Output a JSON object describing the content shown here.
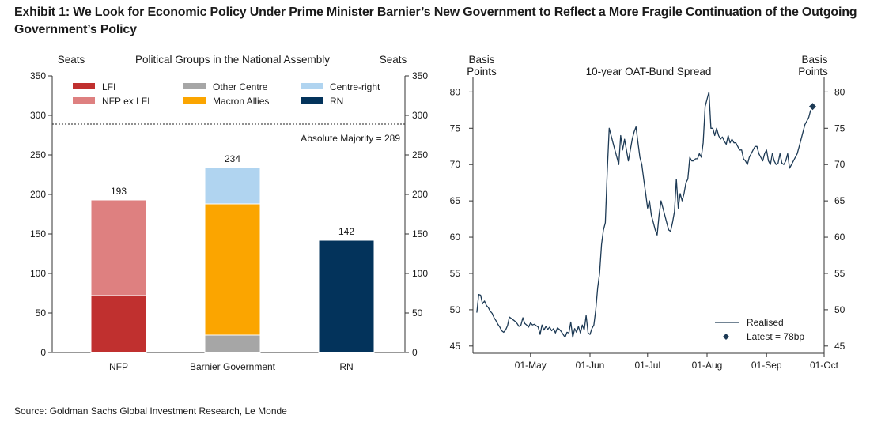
{
  "exhibit": {
    "title": "Exhibit 1: We Look for Economic Policy Under Prime Minister Barnier’s New Government to Reflect a More Fragile Continuation of the Outgoing Government’s Policy",
    "source": "Source: Goldman Sachs Global Investment Research, Le Monde"
  },
  "colors": {
    "LFI": "#c0302f",
    "NFP ex LFI": "#de8080",
    "Other Centre": "#a6a6a6",
    "Macron Allies": "#fba500",
    "Centre-right": "#b0d4f0",
    "RN": "#03335b",
    "line": "#1d3a55"
  },
  "chart_data": [
    {
      "type": "bar",
      "stacked": true,
      "title": "Political Groups in the National Assembly",
      "ylabel": "Seats",
      "ylabel_right": "Seats",
      "ylim": [
        0,
        350
      ],
      "yticks": [
        0,
        50,
        100,
        150,
        200,
        250,
        300,
        350
      ],
      "categories": [
        "NFP",
        "Barnier Government",
        "RN"
      ],
      "series": [
        {
          "name": "LFI",
          "values": [
            72,
            0,
            0
          ]
        },
        {
          "name": "NFP ex LFI",
          "values": [
            121,
            0,
            0
          ]
        },
        {
          "name": "Other Centre",
          "values": [
            0,
            22,
            0
          ]
        },
        {
          "name": "Macron Allies",
          "values": [
            0,
            166,
            0
          ]
        },
        {
          "name": "Centre-right",
          "values": [
            0,
            46,
            0
          ]
        },
        {
          "name": "RN",
          "values": [
            0,
            0,
            142
          ]
        }
      ],
      "totals": [
        "193",
        "234",
        "142"
      ],
      "reference_line": {
        "value": 289,
        "label": "Absolute Majority = 289"
      },
      "legend_order": [
        "LFI",
        "Other Centre",
        "Centre-right",
        "NFP ex LFI",
        "Macron Allies",
        "RN"
      ],
      "legend_position": "top"
    },
    {
      "type": "line",
      "title": "10-year OAT-Bund Spread",
      "ylabel_left": [
        "Basis",
        "Points"
      ],
      "ylabel_right": [
        "Basis",
        "Points"
      ],
      "ylim": [
        44,
        82
      ],
      "yticks": [
        45,
        50,
        55,
        60,
        65,
        70,
        75,
        80
      ],
      "xlim": [
        "2024-04-01",
        "2024-10-01"
      ],
      "xticks": [
        "01-May",
        "01-Jun",
        "01-Jul",
        "01-Aug",
        "01-Sep",
        "01-Oct"
      ],
      "xtick_dates": [
        "2024-05-01",
        "2024-06-01",
        "2024-07-01",
        "2024-08-01",
        "2024-09-01",
        "2024-10-01"
      ],
      "series": [
        {
          "name": "Realised",
          "points": [
            [
              "2024-04-03",
              49.6
            ],
            [
              "2024-04-04",
              52.1
            ],
            [
              "2024-04-05",
              52.0
            ],
            [
              "2024-04-06",
              50.8
            ],
            [
              "2024-04-07",
              51.2
            ],
            [
              "2024-04-08",
              50.6
            ],
            [
              "2024-04-09",
              50.3
            ],
            [
              "2024-04-10",
              49.8
            ],
            [
              "2024-04-11",
              49.5
            ],
            [
              "2024-04-12",
              48.9
            ],
            [
              "2024-04-13",
              48.5
            ],
            [
              "2024-04-14",
              48.0
            ],
            [
              "2024-04-15",
              47.6
            ],
            [
              "2024-04-16",
              47.1
            ],
            [
              "2024-04-17",
              46.9
            ],
            [
              "2024-04-18",
              47.2
            ],
            [
              "2024-04-19",
              47.8
            ],
            [
              "2024-04-20",
              49.0
            ],
            [
              "2024-04-21",
              48.8
            ],
            [
              "2024-04-22",
              48.6
            ],
            [
              "2024-04-23",
              48.4
            ],
            [
              "2024-04-24",
              48.1
            ],
            [
              "2024-04-25",
              47.7
            ],
            [
              "2024-04-26",
              47.9
            ],
            [
              "2024-04-27",
              48.9
            ],
            [
              "2024-04-28",
              48.1
            ],
            [
              "2024-04-29",
              47.9
            ],
            [
              "2024-04-30",
              47.6
            ],
            [
              "2024-05-01",
              48.2
            ],
            [
              "2024-05-02",
              47.9
            ],
            [
              "2024-05-03",
              48.0
            ],
            [
              "2024-05-04",
              47.8
            ],
            [
              "2024-05-05",
              47.6
            ],
            [
              "2024-05-06",
              46.6
            ],
            [
              "2024-05-07",
              47.9
            ],
            [
              "2024-05-08",
              47.2
            ],
            [
              "2024-05-09",
              47.7
            ],
            [
              "2024-05-10",
              47.3
            ],
            [
              "2024-05-11",
              47.6
            ],
            [
              "2024-05-12",
              47.1
            ],
            [
              "2024-05-13",
              47.4
            ],
            [
              "2024-05-14",
              46.8
            ],
            [
              "2024-05-15",
              47.5
            ],
            [
              "2024-05-16",
              47.3
            ],
            [
              "2024-05-17",
              47.0
            ],
            [
              "2024-05-18",
              46.6
            ],
            [
              "2024-05-19",
              46.2
            ],
            [
              "2024-05-20",
              46.9
            ],
            [
              "2024-05-21",
              46.8
            ],
            [
              "2024-05-22",
              48.3
            ],
            [
              "2024-05-23",
              46.2
            ],
            [
              "2024-05-24",
              47.4
            ],
            [
              "2024-05-25",
              46.9
            ],
            [
              "2024-05-26",
              47.7
            ],
            [
              "2024-05-27",
              46.8
            ],
            [
              "2024-05-28",
              47.9
            ],
            [
              "2024-05-29",
              47.2
            ],
            [
              "2024-05-30",
              49.2
            ],
            [
              "2024-05-31",
              46.8
            ],
            [
              "2024-06-01",
              46.6
            ],
            [
              "2024-06-02",
              47.4
            ],
            [
              "2024-06-03",
              47.9
            ],
            [
              "2024-06-04",
              50.0
            ],
            [
              "2024-06-05",
              53.0
            ],
            [
              "2024-06-06",
              55.0
            ],
            [
              "2024-06-07",
              59.0
            ],
            [
              "2024-06-08",
              61.0
            ],
            [
              "2024-06-09",
              62.0
            ],
            [
              "2024-06-10",
              69.0
            ],
            [
              "2024-06-11",
              75.0
            ],
            [
              "2024-06-12",
              74.0
            ],
            [
              "2024-06-13",
              73.0
            ],
            [
              "2024-06-14",
              72.0
            ],
            [
              "2024-06-15",
              71.0
            ],
            [
              "2024-06-16",
              70.0
            ],
            [
              "2024-06-17",
              74.0
            ],
            [
              "2024-06-18",
              72.0
            ],
            [
              "2024-06-19",
              73.5
            ],
            [
              "2024-06-20",
              72.0
            ],
            [
              "2024-06-21",
              70.5
            ],
            [
              "2024-06-22",
              72.0
            ],
            [
              "2024-06-23",
              73.5
            ],
            [
              "2024-06-24",
              74.5
            ],
            [
              "2024-06-25",
              75.2
            ],
            [
              "2024-06-26",
              73.0
            ],
            [
              "2024-06-27",
              71.0
            ],
            [
              "2024-06-28",
              70.0
            ],
            [
              "2024-06-29",
              68.0
            ],
            [
              "2024-06-30",
              66.0
            ],
            [
              "2024-07-01",
              64.0
            ],
            [
              "2024-07-02",
              65.0
            ],
            [
              "2024-07-03",
              63.0
            ],
            [
              "2024-07-04",
              62.0
            ],
            [
              "2024-07-05",
              61.0
            ],
            [
              "2024-07-06",
              60.3
            ],
            [
              "2024-07-07",
              63.0
            ],
            [
              "2024-07-08",
              65.0
            ],
            [
              "2024-07-09",
              64.0
            ],
            [
              "2024-07-10",
              63.0
            ],
            [
              "2024-07-11",
              62.0
            ],
            [
              "2024-07-12",
              61.0
            ],
            [
              "2024-07-13",
              60.8
            ],
            [
              "2024-07-14",
              62.0
            ],
            [
              "2024-07-15",
              63.5
            ],
            [
              "2024-07-16",
              68.0
            ],
            [
              "2024-07-17",
              64.0
            ],
            [
              "2024-07-18",
              66.0
            ],
            [
              "2024-07-19",
              65.0
            ],
            [
              "2024-07-20",
              66.0
            ],
            [
              "2024-07-21",
              67.5
            ],
            [
              "2024-07-22",
              68.0
            ],
            [
              "2024-07-23",
              71.0
            ],
            [
              "2024-07-24",
              70.5
            ],
            [
              "2024-07-25",
              70.5
            ],
            [
              "2024-07-26",
              70.8
            ],
            [
              "2024-07-27",
              70.8
            ],
            [
              "2024-07-28",
              71.5
            ],
            [
              "2024-07-29",
              71.0
            ],
            [
              "2024-07-30",
              73.0
            ],
            [
              "2024-07-31",
              78.0
            ],
            [
              "2024-08-01",
              79.0
            ],
            [
              "2024-08-02",
              80.0
            ],
            [
              "2024-08-03",
              75.0
            ],
            [
              "2024-08-04",
              75.0
            ],
            [
              "2024-08-05",
              74.0
            ],
            [
              "2024-08-06",
              75.0
            ],
            [
              "2024-08-07",
              74.0
            ],
            [
              "2024-08-08",
              73.5
            ],
            [
              "2024-08-09",
              73.8
            ],
            [
              "2024-08-10",
              73.2
            ],
            [
              "2024-08-11",
              72.8
            ],
            [
              "2024-08-12",
              74.0
            ],
            [
              "2024-08-13",
              73.0
            ],
            [
              "2024-08-14",
              73.5
            ],
            [
              "2024-08-15",
              73.0
            ],
            [
              "2024-08-16",
              73.0
            ],
            [
              "2024-08-17",
              72.5
            ],
            [
              "2024-08-18",
              72.0
            ],
            [
              "2024-08-19",
              72.0
            ],
            [
              "2024-08-20",
              70.8
            ],
            [
              "2024-08-21",
              70.5
            ],
            [
              "2024-08-22",
              70.0
            ],
            [
              "2024-08-23",
              71.0
            ],
            [
              "2024-08-24",
              71.5
            ],
            [
              "2024-08-25",
              72.0
            ],
            [
              "2024-08-26",
              72.5
            ],
            [
              "2024-08-27",
              72.5
            ],
            [
              "2024-08-28",
              71.5
            ],
            [
              "2024-08-29",
              71.0
            ],
            [
              "2024-08-30",
              70.5
            ],
            [
              "2024-08-31",
              71.5
            ],
            [
              "2024-09-01",
              72.0
            ],
            [
              "2024-09-02",
              70.5
            ],
            [
              "2024-09-03",
              70.0
            ],
            [
              "2024-09-04",
              71.5
            ],
            [
              "2024-09-05",
              70.5
            ],
            [
              "2024-09-06",
              70.0
            ],
            [
              "2024-09-07",
              70.2
            ],
            [
              "2024-09-08",
              71.5
            ],
            [
              "2024-09-09",
              70.2
            ],
            [
              "2024-09-10",
              70.0
            ],
            [
              "2024-09-11",
              70.5
            ],
            [
              "2024-09-12",
              71.5
            ],
            [
              "2024-09-13",
              69.5
            ],
            [
              "2024-09-14",
              70.0
            ],
            [
              "2024-09-15",
              70.5
            ],
            [
              "2024-09-16",
              71.0
            ],
            [
              "2024-09-17",
              71.5
            ],
            [
              "2024-09-18",
              72.5
            ],
            [
              "2024-09-19",
              73.5
            ],
            [
              "2024-09-20",
              74.5
            ],
            [
              "2024-09-21",
              75.5
            ],
            [
              "2024-09-22",
              76.0
            ],
            [
              "2024-09-23",
              76.5
            ],
            [
              "2024-09-24",
              77.5
            ]
          ]
        }
      ],
      "markers": [
        {
          "name": "Latest = 78bp",
          "x": "2024-09-25",
          "y": 78
        }
      ],
      "legend_position": "bottom-right"
    }
  ]
}
